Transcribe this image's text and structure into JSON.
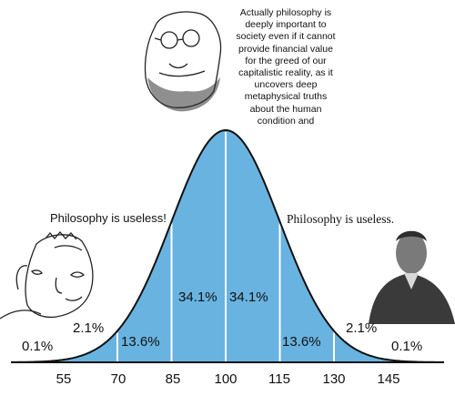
{
  "quote_lines": [
    "Actually philosophy is",
    "deeply important to",
    "society even if it cannot",
    "provide financial value",
    "for the greed of our",
    "capitalistic reality, as it",
    "uncovers deep",
    "metaphysical truths",
    "about the human",
    "condition and"
  ],
  "left_statement": "Philosophy is useless!",
  "right_statement": "Philosophy is useless.",
  "percentages": {
    "far_left": "0.1%",
    "left_outer": "2.1%",
    "left_mid": "13.6%",
    "center_left": "34.1%",
    "center_right": "34.1%",
    "right_mid": "13.6%",
    "right_outer": "2.1%",
    "far_right": "0.1%"
  },
  "ticks": [
    "55",
    "70",
    "85",
    "100",
    "115",
    "130",
    "145"
  ],
  "colors": {
    "fill": "#69b3e0",
    "line": "#111111",
    "divider": "#ffffff"
  }
}
